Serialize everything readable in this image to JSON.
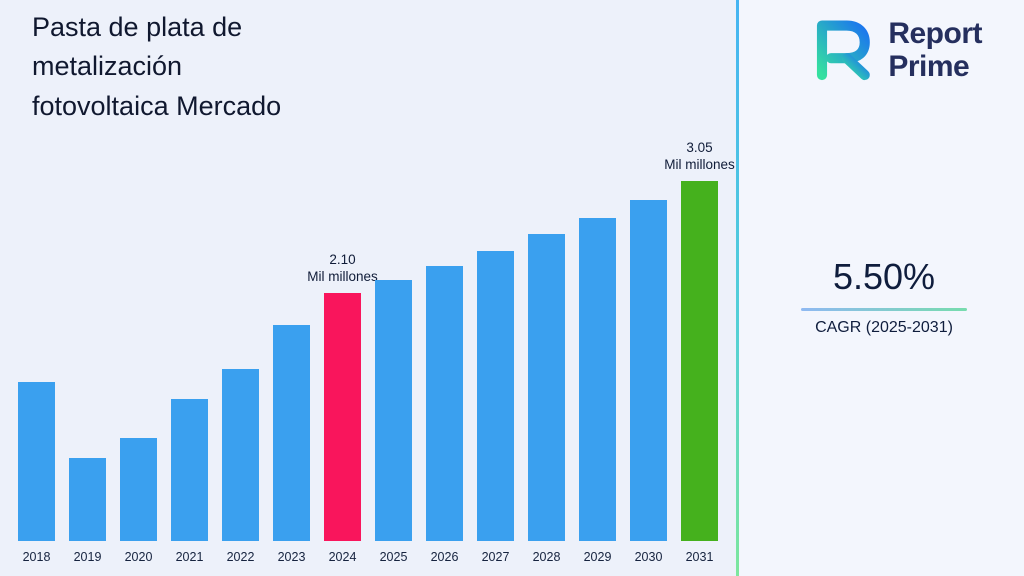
{
  "page": {
    "background": "#edf1fa"
  },
  "header": {
    "title_lines": [
      "Pasta de plata de",
      "metalización",
      "fotovoltaica Mercado"
    ]
  },
  "logo": {
    "line1": "Report",
    "line2": "Prime"
  },
  "cagr": {
    "value": "5.50%",
    "label": "CAGR (2025-2031)"
  },
  "chart_data": {
    "type": "bar",
    "title": "Pasta de plata de metalización fotovoltaica Mercado",
    "unit": "Mil millones",
    "categories": [
      "2018",
      "2019",
      "2020",
      "2021",
      "2022",
      "2023",
      "2024",
      "2025",
      "2026",
      "2027",
      "2028",
      "2029",
      "2030",
      "2031"
    ],
    "values": [
      1.35,
      0.7,
      0.87,
      1.2,
      1.46,
      1.83,
      2.1,
      2.21,
      2.33,
      2.46,
      2.6,
      2.74,
      2.89,
      3.05
    ],
    "ylim": [
      0,
      3.05
    ],
    "grid": false,
    "legend": false,
    "bar_color": "#3aa0ef",
    "annotations": [
      {
        "category": "2024",
        "value_label": "2.10",
        "unit_label": "Mil millones",
        "color": "#f9155c"
      },
      {
        "category": "2031",
        "value_label": "3.05",
        "unit_label": "Mil millones",
        "color": "#45b11d"
      }
    ]
  }
}
